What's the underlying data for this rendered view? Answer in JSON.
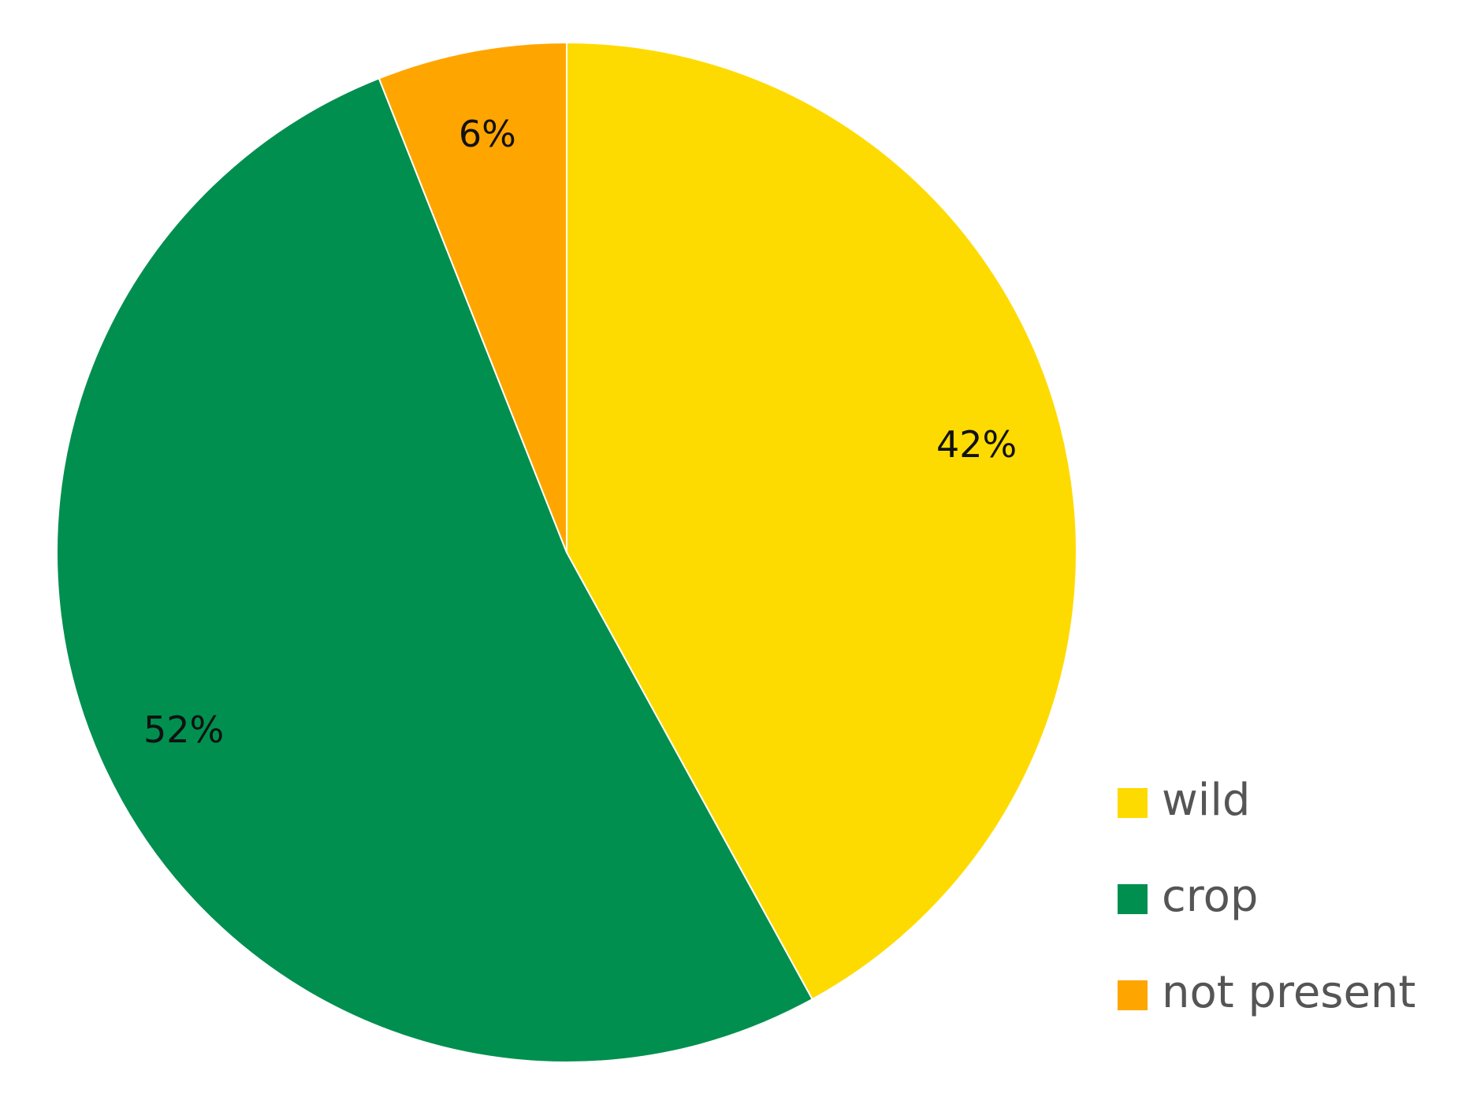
{
  "chart_data": {
    "type": "pie",
    "categories": [
      "wild",
      "crop",
      "not present"
    ],
    "values": [
      42,
      52,
      6
    ],
    "value_labels": [
      "42%",
      "52%",
      "6%"
    ],
    "colors": [
      "#FEDB00",
      "#008F4F",
      "#FFA500"
    ],
    "legend": "bottom-right"
  }
}
